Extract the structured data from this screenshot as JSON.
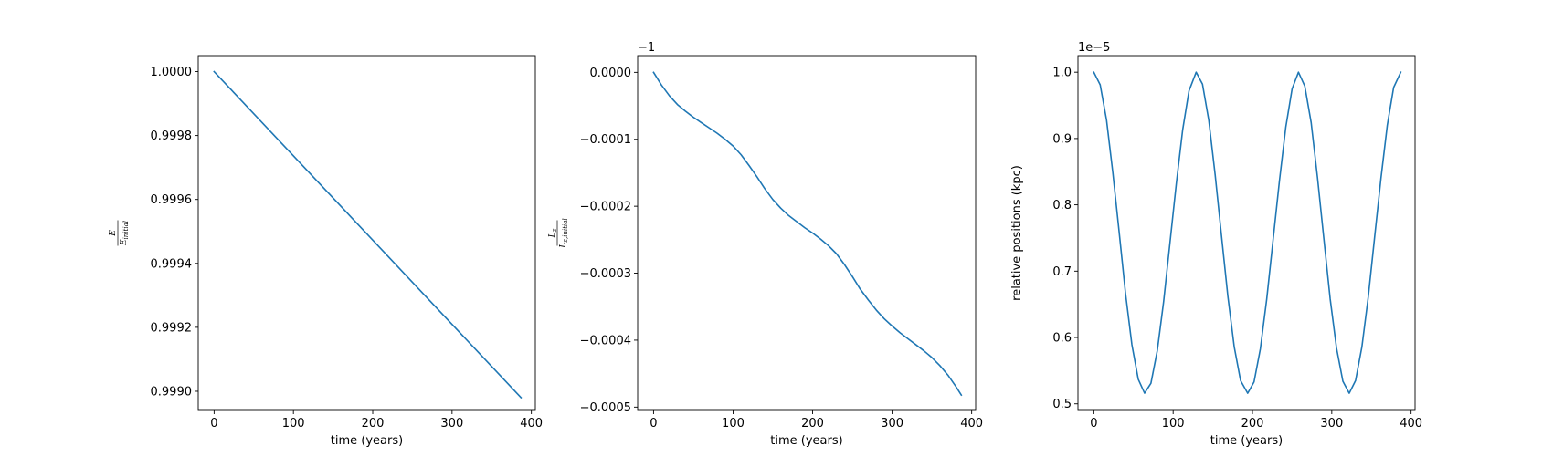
{
  "chart_data": [
    {
      "type": "line",
      "xlabel": "time (years)",
      "ylabel": {
        "numerator": "E",
        "denominator": "E_initial"
      },
      "offset_text": "",
      "xlim": [
        -20,
        405
      ],
      "ylim": [
        0.99894,
        1.00005
      ],
      "xticks": [
        0,
        100,
        200,
        300,
        400
      ],
      "xtick_labels": [
        "0",
        "100",
        "200",
        "300",
        "400"
      ],
      "yticks": [
        0.999,
        0.9992,
        0.9994,
        0.9996,
        0.9998,
        1.0
      ],
      "ytick_labels": [
        "0.9990",
        "0.9992",
        "0.9994",
        "0.9996",
        "0.9998",
        "1.0000"
      ],
      "color": "#1f77b4",
      "series": [
        {
          "x": [
            0,
            387
          ],
          "y": [
            1.0,
            0.99898
          ]
        }
      ]
    },
    {
      "type": "line",
      "xlabel": "time (years)",
      "ylabel": {
        "numerator": "L_z",
        "denominator": "L_z,initial"
      },
      "offset_text": "−1",
      "xlim": [
        -20,
        405
      ],
      "ylim": [
        -0.000505,
        2.5e-05
      ],
      "xticks": [
        0,
        100,
        200,
        300,
        400
      ],
      "xtick_labels": [
        "0",
        "100",
        "200",
        "300",
        "400"
      ],
      "yticks": [
        -0.0005,
        -0.0004,
        -0.0003,
        -0.0002,
        -0.0001,
        0.0
      ],
      "ytick_labels": [
        "−0.0005",
        "−0.0004",
        "−0.0003",
        "−0.0002",
        "−0.0001",
        "0.0000"
      ],
      "color": "#1f77b4",
      "series": [
        {
          "x": [
            0,
            10,
            20,
            30,
            40,
            50,
            60,
            70,
            80,
            90,
            100,
            110,
            120,
            130,
            140,
            150,
            160,
            170,
            180,
            190,
            200,
            210,
            220,
            230,
            240,
            250,
            260,
            270,
            280,
            290,
            300,
            310,
            320,
            330,
            340,
            350,
            360,
            370,
            380,
            387
          ],
          "y": [
            0.0,
            -1.9e-05,
            -3.5e-05,
            -4.8e-05,
            -5.8e-05,
            -6.7e-05,
            -7.5e-05,
            -8.3e-05,
            -9.1e-05,
            -0.0001,
            -0.00011,
            -0.000123,
            -0.000139,
            -0.000156,
            -0.000174,
            -0.00019,
            -0.000203,
            -0.000214,
            -0.000223,
            -0.000232,
            -0.00024,
            -0.000249,
            -0.000259,
            -0.000271,
            -0.000287,
            -0.000305,
            -0.000324,
            -0.00034,
            -0.000355,
            -0.000368,
            -0.000379,
            -0.000389,
            -0.000398,
            -0.000407,
            -0.000416,
            -0.000426,
            -0.000438,
            -0.000452,
            -0.000469,
            -0.000482
          ]
        }
      ]
    },
    {
      "type": "line",
      "xlabel": "time (years)",
      "ylabel": "relative positions (kpc)",
      "offset_text": "1e−5",
      "xlim": [
        -20,
        405
      ],
      "ylim": [
        0.49,
        1.025
      ],
      "xticks": [
        0,
        100,
        200,
        300,
        400
      ],
      "xtick_labels": [
        "0",
        "100",
        "200",
        "300",
        "400"
      ],
      "yticks": [
        0.5,
        0.6,
        0.7,
        0.8,
        0.9,
        1.0
      ],
      "ytick_labels": [
        "0.5",
        "0.6",
        "0.7",
        "0.8",
        "0.9",
        "1.0"
      ],
      "color": "#1f77b4",
      "series": [
        {
          "x": [
            0,
            8,
            16,
            24,
            32,
            40,
            48,
            56,
            64,
            72,
            80,
            88,
            96,
            104,
            112,
            120,
            129,
            137,
            145,
            153,
            161,
            169,
            177,
            185,
            194,
            202,
            210,
            218,
            226,
            234,
            242,
            250,
            258,
            266,
            274,
            282,
            290,
            298,
            306,
            314,
            322,
            330,
            338,
            346,
            354,
            362,
            370,
            378,
            387
          ],
          "y": [
            1.0,
            0.981,
            0.928,
            0.848,
            0.758,
            0.666,
            0.589,
            0.537,
            0.516,
            0.531,
            0.58,
            0.654,
            0.743,
            0.832,
            0.913,
            0.972,
            1.0,
            0.982,
            0.927,
            0.845,
            0.753,
            0.662,
            0.586,
            0.535,
            0.516,
            0.533,
            0.583,
            0.658,
            0.747,
            0.836,
            0.917,
            0.975,
            1.0,
            0.979,
            0.924,
            0.841,
            0.749,
            0.658,
            0.584,
            0.534,
            0.516,
            0.535,
            0.586,
            0.661,
            0.751,
            0.84,
            0.92,
            0.977,
            1.0
          ]
        }
      ]
    }
  ]
}
